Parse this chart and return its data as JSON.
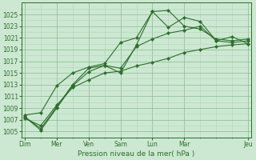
{
  "xlabel": "Pression niveau de la mer( hPa )",
  "bg_color": "#cde8d2",
  "grid_minor_color": "#b0d4b8",
  "grid_major_color": "#88bb90",
  "line_color": "#2d6e2d",
  "marker_color": "#2d6e2d",
  "ylim": [
    1004,
    1027
  ],
  "yticks": [
    1005,
    1007,
    1009,
    1011,
    1013,
    1015,
    1017,
    1019,
    1021,
    1023,
    1025
  ],
  "xlim": [
    -0.1,
    7.1
  ],
  "major_xtick_positions": [
    0,
    1,
    2,
    3,
    4,
    5,
    7
  ],
  "major_xtick_labels": [
    "Dim",
    "Mer",
    "Ven",
    "Sam",
    "Lun",
    "Mar",
    "Jeu"
  ],
  "series": [
    {
      "x": [
        0,
        0.5,
        1,
        1.5,
        2,
        2.5,
        3,
        3.5,
        4,
        4.5,
        5,
        5.5,
        6,
        6.5,
        7
      ],
      "y": [
        1007.5,
        1005.2,
        1009.0,
        1012.8,
        1015.2,
        1016.3,
        1015.0,
        1019.8,
        1025.5,
        1025.7,
        1023.0,
        1022.5,
        1020.8,
        1020.5,
        1020.8
      ]
    },
    {
      "x": [
        0,
        0.5,
        1,
        1.5,
        2,
        2.5,
        3,
        3.5,
        4,
        4.5,
        5,
        5.5,
        6,
        6.5,
        7
      ],
      "y": [
        1007.8,
        1008.2,
        1012.8,
        1015.0,
        1016.0,
        1016.6,
        1020.2,
        1021.0,
        1025.5,
        1022.8,
        1024.5,
        1023.8,
        1020.5,
        1021.2,
        1020.0
      ]
    },
    {
      "x": [
        0,
        0.5,
        1,
        1.5,
        2,
        2.5,
        3,
        3.5,
        4,
        4.5,
        5,
        5.5,
        6,
        6.5,
        7
      ],
      "y": [
        1007.2,
        1006.0,
        1009.5,
        1012.5,
        1013.8,
        1015.0,
        1015.3,
        1016.2,
        1016.8,
        1017.5,
        1018.5,
        1019.0,
        1019.5,
        1019.8,
        1020.0
      ]
    },
    {
      "x": [
        0,
        0.5,
        1,
        1.5,
        2,
        2.5,
        3,
        3.5,
        4,
        4.5,
        5,
        5.5,
        6,
        6.5,
        7
      ],
      "y": [
        1007.5,
        1005.5,
        1009.2,
        1013.0,
        1015.8,
        1016.3,
        1015.8,
        1019.5,
        1020.8,
        1021.8,
        1022.3,
        1023.0,
        1020.5,
        1020.2,
        1020.5
      ]
    }
  ]
}
